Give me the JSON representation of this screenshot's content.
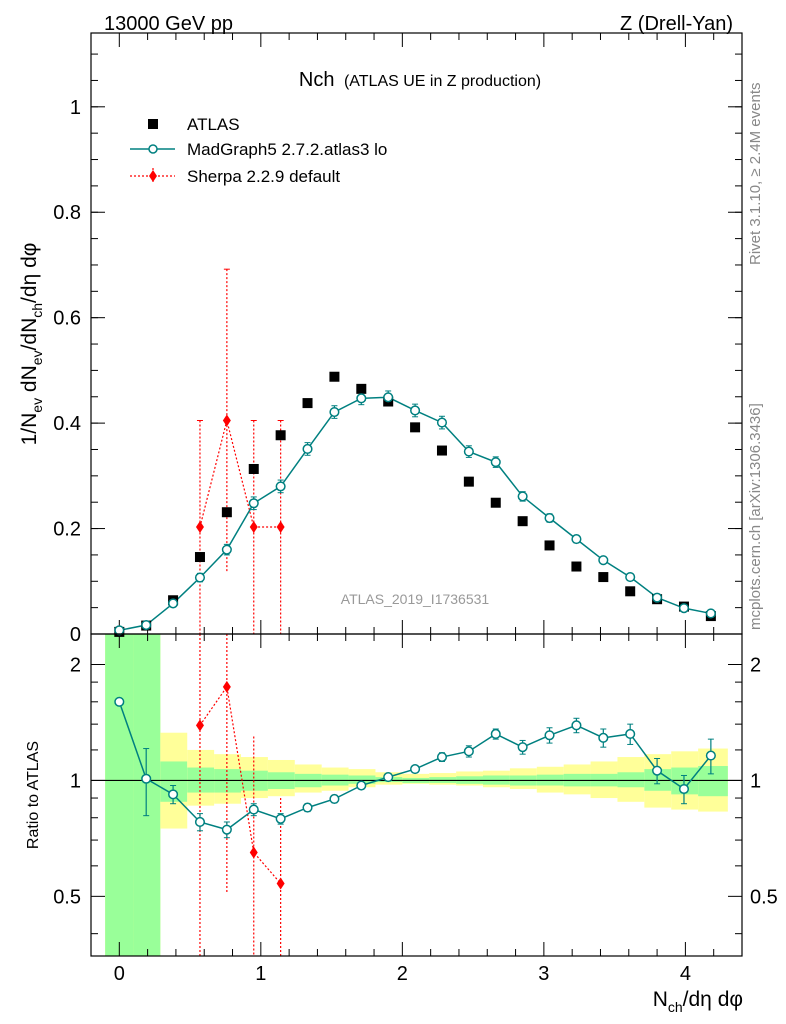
{
  "header": {
    "left": "13000 GeV pp",
    "right": "Z (Drell-Yan)"
  },
  "side": {
    "rivet": "Rivet 3.1.10, ≥ 2.4M events",
    "mcplots": "mcplots.cern.ch [arXiv:1306.3436]"
  },
  "colors": {
    "mc": "#008080",
    "sherpa": "#ff0000",
    "band_stat": "#99ff99",
    "band_total": "#ffff99"
  },
  "chart_data": [
    {
      "type": "scatter",
      "title": "Nch",
      "subtitle": "(ATLAS UE in Z production)",
      "analysis": "ATLAS_2019_I1736531",
      "ylabel": "1/N_ev dN_ev/dN_ch/dη dφ",
      "xlabel": "N_ch/dη dφ",
      "xlim": [
        -0.2,
        4.4
      ],
      "ylim": [
        0,
        1.14
      ],
      "xticks": [
        0,
        1,
        2,
        3,
        4
      ],
      "yticks": [
        0,
        0.2,
        0.4,
        0.6,
        0.8,
        1
      ],
      "ytick_labels": [
        "0",
        "0.2",
        "0.4",
        "0.6",
        "0.8",
        "1"
      ],
      "xtick_labels": [
        "0",
        "1",
        "2",
        "3",
        "4"
      ],
      "legend": [
        {
          "label": "ATLAS",
          "style": "square",
          "color": "#000000"
        },
        {
          "label": "MadGraph5 2.7.2.atlas3 lo",
          "style": "line-circle",
          "color": "#008080"
        },
        {
          "label": "Sherpa 2.2.9 default",
          "style": "dotted-diamond",
          "color": "#ff0000"
        }
      ],
      "series": [
        {
          "name": "ATLAS",
          "x": [
            0.0,
            0.19,
            0.38,
            0.57,
            0.76,
            0.95,
            1.14,
            1.33,
            1.52,
            1.71,
            1.9,
            2.09,
            2.28,
            2.47,
            2.66,
            2.85,
            3.04,
            3.23,
            3.42,
            3.61,
            3.8,
            3.99,
            4.18
          ],
          "y": [
            0.004,
            0.016,
            0.064,
            0.146,
            0.231,
            0.313,
            0.377,
            0.438,
            0.488,
            0.465,
            0.441,
            0.392,
            0.348,
            0.289,
            0.249,
            0.214,
            0.168,
            0.128,
            0.108,
            0.081,
            0.066,
            0.052,
            0.034
          ]
        },
        {
          "name": "MadGraph5 2.7.2.atlas3 lo",
          "x": [
            0.0,
            0.19,
            0.38,
            0.57,
            0.76,
            0.95,
            1.14,
            1.33,
            1.52,
            1.71,
            1.9,
            2.09,
            2.28,
            2.47,
            2.66,
            2.85,
            3.04,
            3.23,
            3.42,
            3.61,
            3.8,
            3.99,
            4.18
          ],
          "y": [
            0.007,
            0.017,
            0.058,
            0.107,
            0.16,
            0.248,
            0.28,
            0.351,
            0.421,
            0.447,
            0.449,
            0.424,
            0.401,
            0.346,
            0.326,
            0.261,
            0.22,
            0.18,
            0.14,
            0.108,
            0.069,
            0.049,
            0.039
          ],
          "yerr": [
            0.002,
            0.003,
            0.006,
            0.008,
            0.01,
            0.012,
            0.012,
            0.012,
            0.012,
            0.012,
            0.012,
            0.012,
            0.012,
            0.011,
            0.01,
            0.009,
            0.008,
            0.007,
            0.006,
            0.005,
            0.004,
            0.004,
            0.004
          ]
        },
        {
          "name": "Sherpa 2.2.9 default",
          "x": [
            0.57,
            0.76,
            0.95,
            1.14
          ],
          "y": [
            0.203,
            0.405,
            0.203,
            0.203
          ],
          "ylo": [
            0.0,
            0.118,
            0.0,
            0.0
          ],
          "yhi": [
            0.405,
            0.692,
            0.405,
            0.405
          ]
        }
      ]
    },
    {
      "type": "scatter",
      "ylabel": "Ratio to ATLAS",
      "xlabel": "N_ch/dη dφ",
      "ylim": [
        0.35,
        2.4
      ],
      "yscale": "log",
      "yticks": [
        0.5,
        1,
        2
      ],
      "ytick_labels": [
        "0.5",
        "1",
        "2"
      ],
      "reference_line": 1,
      "band_edges": [
        -0.1,
        0.1,
        0.29,
        0.48,
        0.67,
        0.86,
        1.05,
        1.24,
        1.43,
        1.62,
        1.81,
        2.0,
        2.19,
        2.38,
        2.57,
        2.76,
        2.95,
        3.14,
        3.33,
        3.52,
        3.71,
        3.9,
        4.09,
        4.3
      ],
      "band_stat": {
        "lo": [
          0.35,
          0.35,
          0.88,
          0.93,
          0.93,
          0.94,
          0.95,
          0.96,
          0.97,
          0.98,
          0.99,
          0.985,
          0.985,
          0.98,
          0.975,
          0.97,
          0.97,
          0.965,
          0.965,
          0.96,
          0.94,
          0.92,
          0.91
        ],
        "hi": [
          2.4,
          2.4,
          1.12,
          1.08,
          1.07,
          1.06,
          1.05,
          1.04,
          1.035,
          1.03,
          1.02,
          1.015,
          1.02,
          1.025,
          1.03,
          1.03,
          1.035,
          1.04,
          1.04,
          1.05,
          1.07,
          1.08,
          1.09
        ]
      },
      "band_total": {
        "lo": [
          0.35,
          0.35,
          0.75,
          0.86,
          0.87,
          0.9,
          0.91,
          0.93,
          0.94,
          0.96,
          0.975,
          0.98,
          0.975,
          0.97,
          0.96,
          0.95,
          0.93,
          0.92,
          0.9,
          0.88,
          0.85,
          0.84,
          0.83
        ],
        "hi": [
          2.4,
          2.4,
          1.33,
          1.2,
          1.17,
          1.15,
          1.13,
          1.1,
          1.08,
          1.07,
          1.05,
          1.04,
          1.045,
          1.055,
          1.06,
          1.075,
          1.085,
          1.1,
          1.12,
          1.15,
          1.17,
          1.19,
          1.21
        ]
      },
      "series": [
        {
          "name": "MadGraph5 2.7.2.atlas3 lo",
          "x": [
            0.0,
            0.19,
            0.38,
            0.57,
            0.76,
            0.95,
            1.14,
            1.33,
            1.52,
            1.71,
            1.9,
            2.09,
            2.28,
            2.47,
            2.66,
            2.85,
            3.04,
            3.23,
            3.42,
            3.61,
            3.8,
            3.99,
            4.18
          ],
          "y": [
            1.6,
            1.01,
            0.92,
            0.78,
            0.745,
            0.84,
            0.795,
            0.85,
            0.895,
            0.97,
            1.02,
            1.07,
            1.15,
            1.19,
            1.32,
            1.22,
            1.31,
            1.39,
            1.29,
            1.32,
            1.06,
            0.95,
            1.16
          ],
          "yerr": [
            0.0,
            0.2,
            0.05,
            0.04,
            0.035,
            0.03,
            0.025,
            0.02,
            0.02,
            0.015,
            0.015,
            0.015,
            0.03,
            0.04,
            0.04,
            0.05,
            0.06,
            0.06,
            0.07,
            0.08,
            0.08,
            0.08,
            0.12
          ]
        },
        {
          "name": "Sherpa 2.2.9 default",
          "x": [
            0.57,
            0.76,
            0.95,
            1.14
          ],
          "y": [
            1.39,
            1.75,
            0.65,
            0.54
          ],
          "ylo": [
            0.35,
            0.51,
            0.35,
            0.35
          ],
          "yhi": [
            2.4,
            2.4,
            1.3,
            0.9
          ]
        }
      ]
    }
  ]
}
